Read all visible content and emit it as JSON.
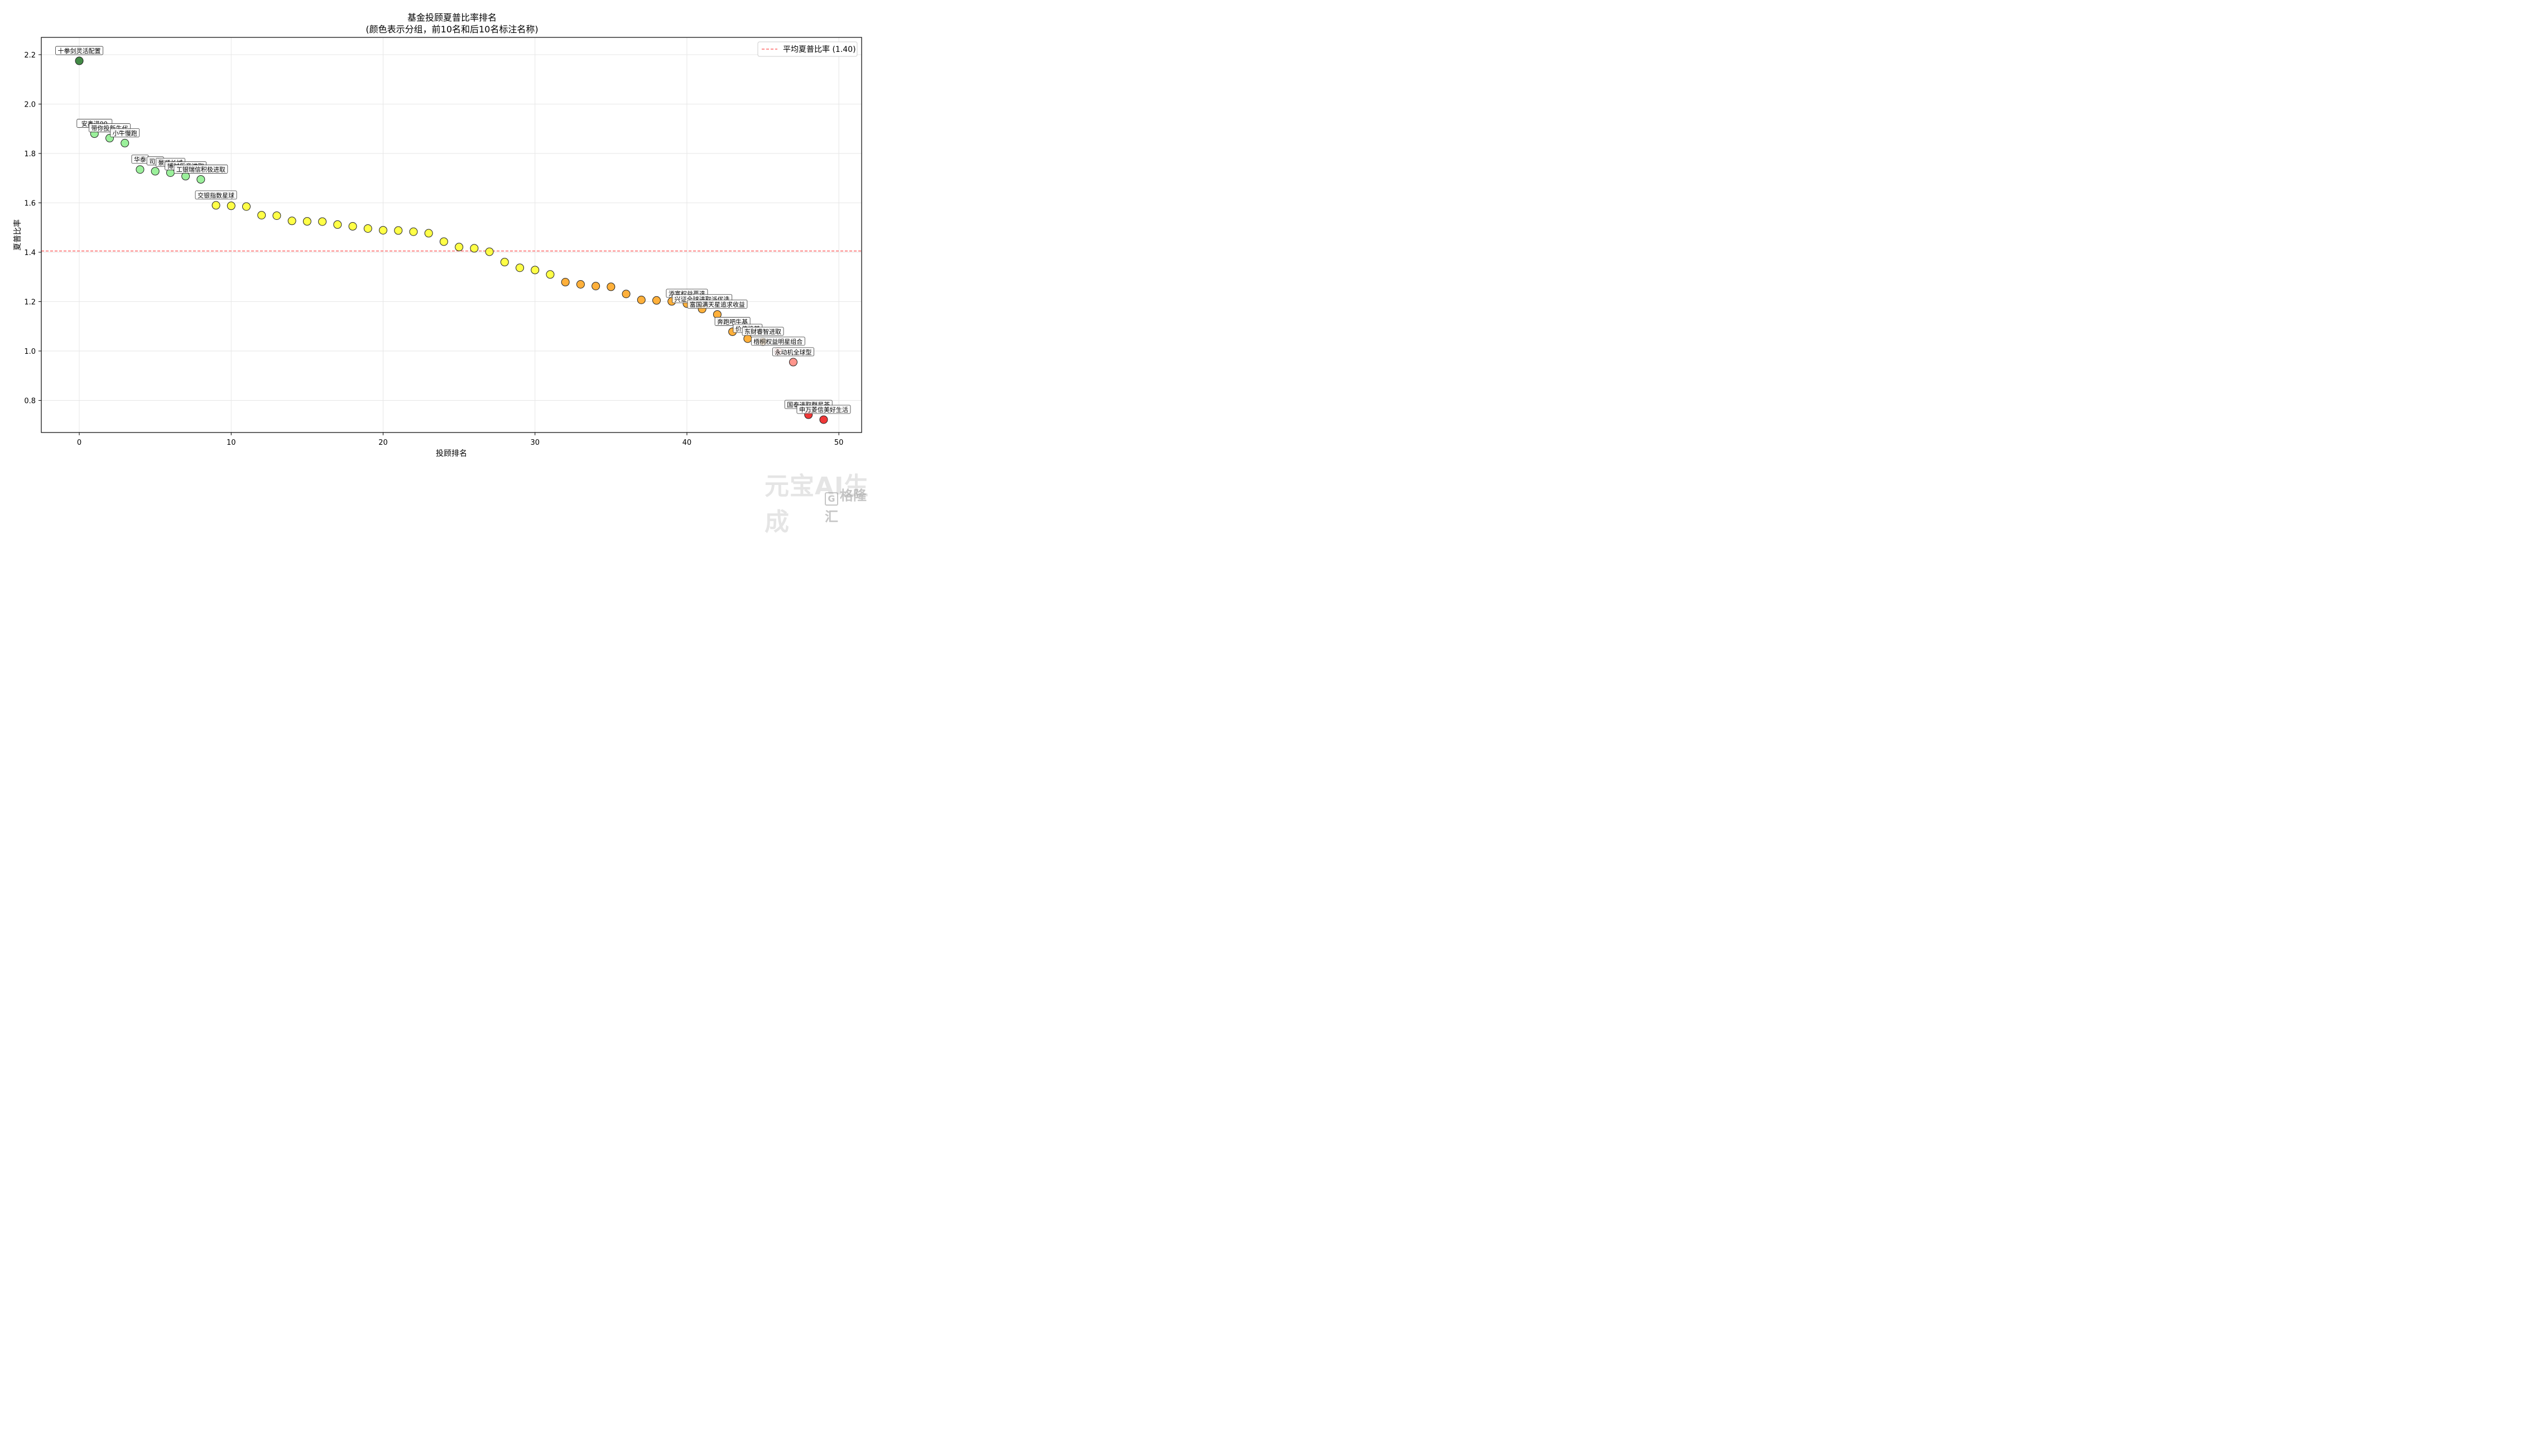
{
  "chart_data": {
    "type": "scatter",
    "title": "基金投顾夏普比率排名",
    "subtitle": "(颜色表示分组，前10名和后10名标注名称)",
    "xlabel": "投顾排名",
    "ylabel": "夏普比率",
    "xlim": [
      -2.5,
      51.5
    ],
    "ylim": [
      0.67,
      2.27
    ],
    "xticks": [
      0,
      10,
      20,
      30,
      40,
      50
    ],
    "yticks": [
      0.8,
      1.0,
      1.2,
      1.4,
      1.6,
      1.8,
      2.0,
      2.2
    ],
    "ytick_labels": [
      "0.8",
      "1.0",
      "1.2",
      "1.4",
      "1.6",
      "1.8",
      "2.0",
      "2.2"
    ],
    "grid": true,
    "legend": {
      "position": "top-right",
      "label": "平均夏普比率 (1.40)"
    },
    "mean_line": {
      "y": 1.405,
      "color": "#ff4d4d"
    },
    "group_colors": [
      "#2e7d32",
      "#90ee90",
      "#ffff33",
      "#ffa726",
      "#ff8a80",
      "#ee2222"
    ],
    "points": [
      {
        "x": 0,
        "y": 2.175,
        "g": 0,
        "label": "十拳剑灵活配置"
      },
      {
        "x": 1,
        "y": 1.88,
        "g": 1,
        "label": "安鑫进90"
      },
      {
        "x": 2,
        "y": 1.862,
        "g": 1,
        "label": "带你投新生代"
      },
      {
        "x": 3,
        "y": 1.842,
        "g": 1,
        "label": "小牛慢跑"
      },
      {
        "x": 4,
        "y": 1.735,
        "g": 1,
        "label": "华泰"
      },
      {
        "x": 5,
        "y": 1.728,
        "g": 1,
        "label": "司南"
      },
      {
        "x": 6,
        "y": 1.722,
        "g": 1,
        "label": "景顺长城"
      },
      {
        "x": 7,
        "y": 1.708,
        "g": 1,
        "label": "博时乐意进取"
      },
      {
        "x": 8,
        "y": 1.695,
        "g": 1,
        "label": "工银瑞信积极进取"
      },
      {
        "x": 9,
        "y": 1.59,
        "g": 2,
        "label": "交银指数星球"
      },
      {
        "x": 10,
        "y": 1.588,
        "g": 2,
        "label": ""
      },
      {
        "x": 11,
        "y": 1.585,
        "g": 2,
        "label": ""
      },
      {
        "x": 12,
        "y": 1.55,
        "g": 2,
        "label": ""
      },
      {
        "x": 13,
        "y": 1.548,
        "g": 2,
        "label": ""
      },
      {
        "x": 14,
        "y": 1.527,
        "g": 2,
        "label": ""
      },
      {
        "x": 15,
        "y": 1.525,
        "g": 2,
        "label": ""
      },
      {
        "x": 16,
        "y": 1.524,
        "g": 2,
        "label": ""
      },
      {
        "x": 17,
        "y": 1.512,
        "g": 2,
        "label": ""
      },
      {
        "x": 18,
        "y": 1.505,
        "g": 2,
        "label": ""
      },
      {
        "x": 19,
        "y": 1.496,
        "g": 2,
        "label": ""
      },
      {
        "x": 20,
        "y": 1.489,
        "g": 2,
        "label": ""
      },
      {
        "x": 21,
        "y": 1.488,
        "g": 2,
        "label": ""
      },
      {
        "x": 22,
        "y": 1.483,
        "g": 2,
        "label": ""
      },
      {
        "x": 23,
        "y": 1.477,
        "g": 2,
        "label": ""
      },
      {
        "x": 24,
        "y": 1.443,
        "g": 2,
        "label": ""
      },
      {
        "x": 25,
        "y": 1.421,
        "g": 2,
        "label": ""
      },
      {
        "x": 26,
        "y": 1.416,
        "g": 2,
        "label": ""
      },
      {
        "x": 27,
        "y": 1.402,
        "g": 2,
        "label": ""
      },
      {
        "x": 28,
        "y": 1.36,
        "g": 2,
        "label": ""
      },
      {
        "x": 29,
        "y": 1.337,
        "g": 2,
        "label": ""
      },
      {
        "x": 30,
        "y": 1.328,
        "g": 2,
        "label": ""
      },
      {
        "x": 31,
        "y": 1.31,
        "g": 2,
        "label": ""
      },
      {
        "x": 32,
        "y": 1.279,
        "g": 3,
        "label": ""
      },
      {
        "x": 33,
        "y": 1.27,
        "g": 3,
        "label": ""
      },
      {
        "x": 34,
        "y": 1.263,
        "g": 3,
        "label": ""
      },
      {
        "x": 35,
        "y": 1.26,
        "g": 3,
        "label": ""
      },
      {
        "x": 36,
        "y": 1.231,
        "g": 3,
        "label": ""
      },
      {
        "x": 37,
        "y": 1.207,
        "g": 3,
        "label": ""
      },
      {
        "x": 38,
        "y": 1.205,
        "g": 3,
        "label": ""
      },
      {
        "x": 39,
        "y": 1.201,
        "g": 3,
        "label": ""
      },
      {
        "x": 40,
        "y": 1.192,
        "g": 3,
        "label": "添富权益严选"
      },
      {
        "x": 41,
        "y": 1.17,
        "g": 3,
        "label": "兴证全球进取派优选"
      },
      {
        "x": 42,
        "y": 1.148,
        "g": 3,
        "label": "富国满天星追求收益"
      },
      {
        "x": 43,
        "y": 1.078,
        "g": 3,
        "label": "奔跑吧牛基"
      },
      {
        "x": 44,
        "y": 1.05,
        "g": 3,
        "label": "价值投基"
      },
      {
        "x": 45,
        "y": 1.038,
        "g": 3,
        "label": "东财睿智进取"
      },
      {
        "x": 46,
        "y": 0.998,
        "g": 4,
        "label": "梧桐权益明星组合"
      },
      {
        "x": 47,
        "y": 0.955,
        "g": 4,
        "label": "永动机全球型"
      },
      {
        "x": 48,
        "y": 0.742,
        "g": 5,
        "label": "国泰进取群星荟"
      },
      {
        "x": 49,
        "y": 0.722,
        "g": 5,
        "label": "申万菱信美好生活"
      }
    ]
  },
  "watermark": {
    "main": "元宝AI生成",
    "logo_glyph": "G",
    "sub": "格隆汇"
  }
}
